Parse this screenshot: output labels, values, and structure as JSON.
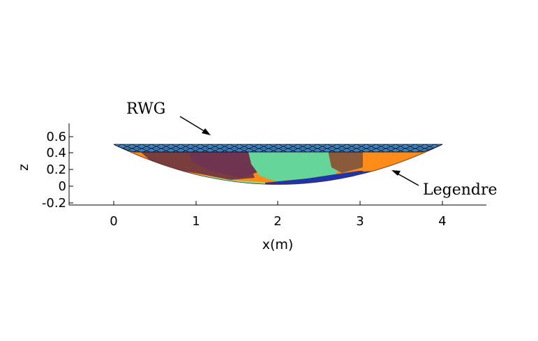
{
  "figure": {
    "xlabel": "x(m)",
    "ylabel": "z",
    "x_ticks": [
      "0",
      "1",
      "2",
      "3",
      "4"
    ],
    "y_ticks": [
      "0.6",
      "0.4",
      "0.2",
      "0",
      "-0.2"
    ],
    "annotations": {
      "rwg": "RWG",
      "legendre": "Legendre"
    },
    "colors": {
      "mesh_fill": "#3f8fd8",
      "mesh_line": "#0a0a0a",
      "orange": "#ff8c19",
      "brown": "#7a3d3d",
      "purple": "#6f3450",
      "light_green": "#8be08b",
      "mint": "#66d59a",
      "blue": "#1d35a8",
      "dark_red": "#8a2216"
    }
  }
}
